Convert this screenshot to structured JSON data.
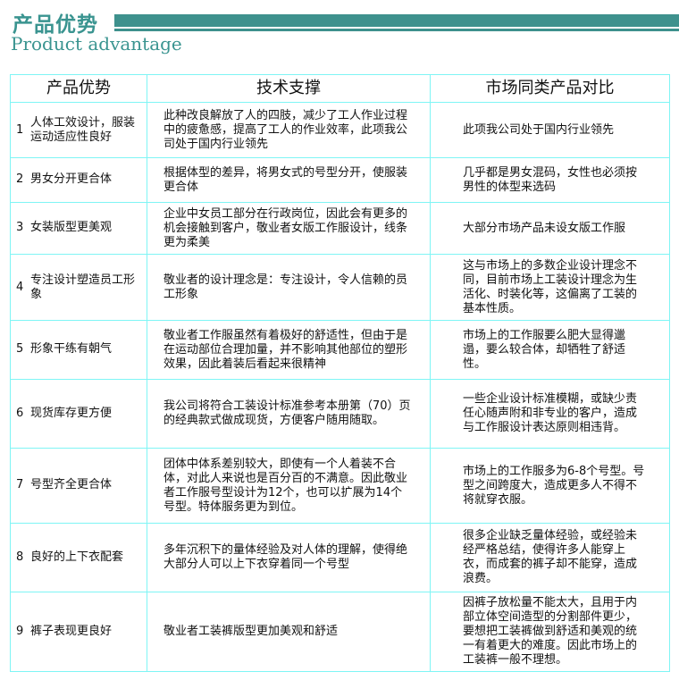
{
  "header": {
    "title_cn": "产品优势",
    "title_en": "Product advantage",
    "accent_color": "#3e918d",
    "border_color": "#7ff5f5"
  },
  "table": {
    "columns": [
      "产品优势",
      "技术支撑",
      "市场同类产品对比"
    ],
    "rows": [
      {
        "num": "1",
        "advantage": "人体工效设计，服装运动适应性良好",
        "support": "此种改良解放了人的四肢，减少了工人作业过程中的疲惫感，提高了工人的作业效率，此项我公司处于国内行业领先",
        "comparison": "此项我公司处于国内行业领先"
      },
      {
        "num": "2",
        "advantage": "男女分开更合体",
        "support": "根据体型的差异，将男女式的号型分开，使服装更合体",
        "comparison": "几乎都是男女混码，女性也必须按男性的体型来选码"
      },
      {
        "num": "3",
        "advantage": "女装版型更美观",
        "support": "企业中女员工部分在行政岗位，因此会有更多的机会接触到客户，敬业者女版工作服设计，线条更为柔美",
        "comparison": "大部分市场产品未设女版工作服"
      },
      {
        "num": "4",
        "advantage": "专注设计塑造员工形象",
        "support": "敬业者的设计理念是：专注设计，令人信赖的员工形象",
        "comparison": "这与市场上的多数企业设计理念不同，目前市场上工装设计理念为生活化、时装化等，这偏离了工装的基本性质。"
      },
      {
        "num": "5",
        "advantage": "形象干练有朝气",
        "support": "敬业者工作服虽然有着极好的舒适性，但由于是在运动部位合理加量，并不影响其他部位的塑形效果，因此着装后看起来很精神",
        "comparison": "市场上的工作服要么肥大显得邋遢，要么较合体，却牺牲了舒适性。"
      },
      {
        "num": "6",
        "advantage": "现货库存更方便",
        "support": "我公司将符合工装设计标准参考本册第（70）页的经典款式做成现货，方便客户随用随取。",
        "comparison": "一些企业设计标准模糊，或缺少责任心随声附和非专业的客户，造成与工作服设计表达原则相违背。"
      },
      {
        "num": "7",
        "advantage": "号型齐全更合体",
        "support": "团体中体系差别较大，即使有一个人着装不合体，对此人来说也是百分百的不满意。因此敬业者工作服号型设计为12个，也可以扩展为14个号型。特体服务更为到位。",
        "comparison": "市场上的工作服多为6-8个号型。号型之间跨度大，造成更多人不得不将就穿衣服。"
      },
      {
        "num": "8",
        "advantage": "良好的上下衣配套",
        "support": "多年沉积下的量体经验及对人体的理解，使得绝大部分人可以上下衣穿着同一个号型",
        "comparison": "很多企业缺乏量体经验，或经验未经严格总结，使得许多人能穿上衣，而成套的裤子却不能穿，造成浪费。"
      },
      {
        "num": "9",
        "advantage": "裤子表现更良好",
        "support": "敬业者工装裤版型更加美观和舒适",
        "comparison": "因裤子放松量不能太大，且用于内部立体空间造型的分割部件更少，要想把工装裤做到舒适和美观的统一有着更大的难度。因此市场上的工装裤一般不理想。"
      }
    ]
  }
}
